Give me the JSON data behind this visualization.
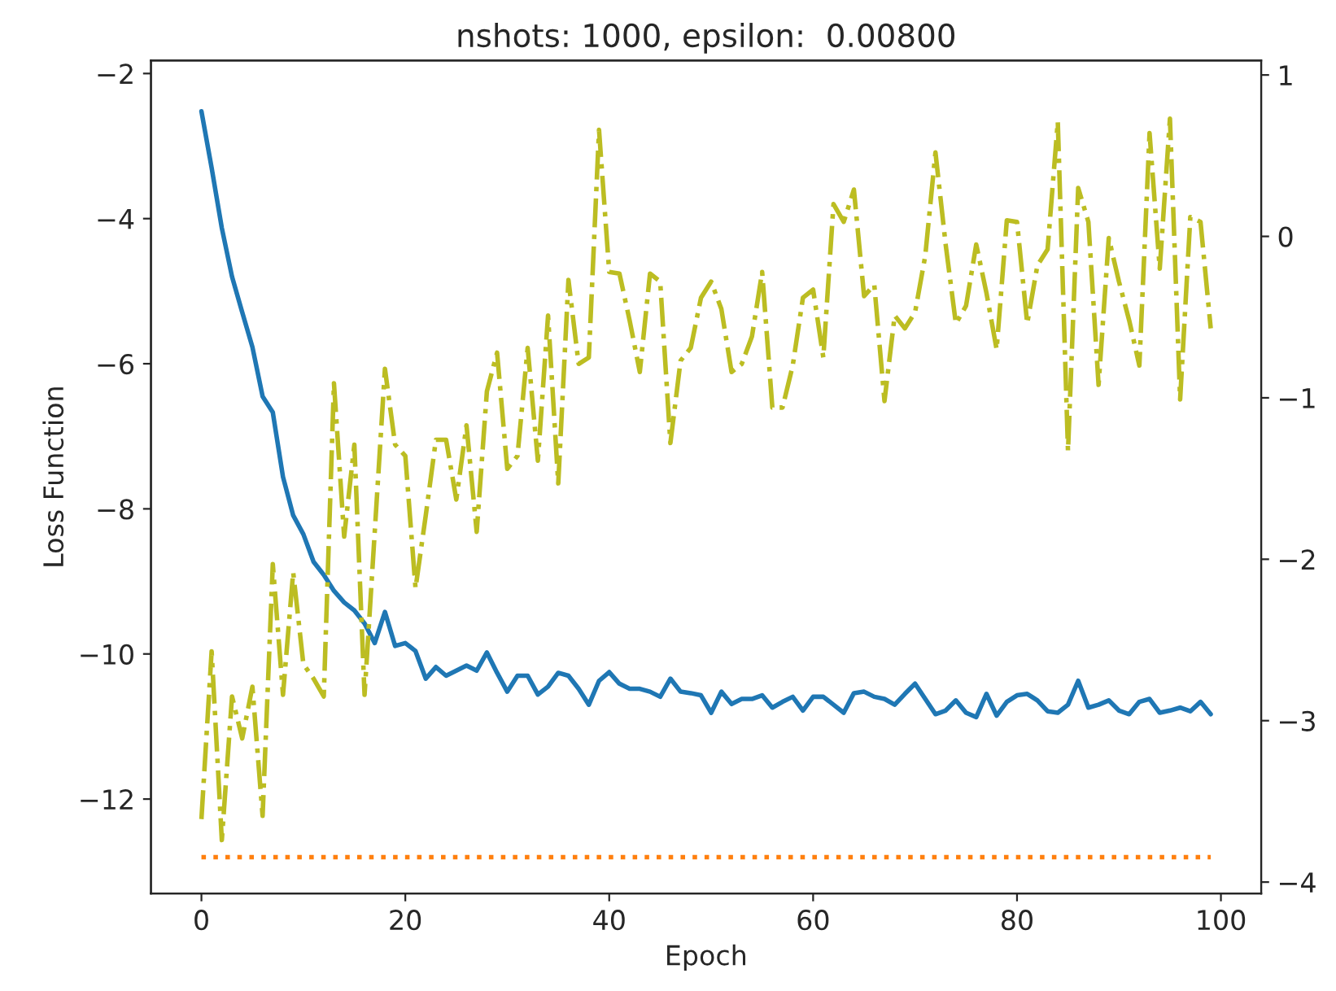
{
  "chart_data": {
    "type": "line",
    "title": "nshots: 1000, epsilon:  0.00800",
    "xlabel": "Epoch",
    "ylabel": "Loss Function",
    "x": [
      0,
      1,
      2,
      3,
      4,
      5,
      6,
      7,
      8,
      9,
      10,
      11,
      12,
      13,
      14,
      15,
      16,
      17,
      18,
      19,
      20,
      21,
      22,
      23,
      24,
      25,
      26,
      27,
      28,
      29,
      30,
      31,
      32,
      33,
      34,
      35,
      36,
      37,
      38,
      39,
      40,
      41,
      42,
      43,
      44,
      45,
      46,
      47,
      48,
      49,
      50,
      51,
      52,
      53,
      54,
      55,
      56,
      57,
      58,
      59,
      60,
      61,
      62,
      63,
      64,
      65,
      66,
      67,
      68,
      69,
      70,
      71,
      72,
      73,
      74,
      75,
      76,
      77,
      78,
      79,
      80,
      81,
      82,
      83,
      84,
      85,
      86,
      87,
      88,
      89,
      90,
      91,
      92,
      93,
      94,
      95,
      96,
      97,
      98,
      99
    ],
    "series": [
      {
        "color": "#1f77b4",
        "line_style": "solid",
        "values": [
          -2.52,
          -3.3,
          -4.13,
          -4.8,
          -5.29,
          -5.77,
          -6.45,
          -6.67,
          -7.56,
          -8.09,
          -8.35,
          -8.73,
          -8.91,
          -9.13,
          -9.29,
          -9.4,
          -9.58,
          -9.85,
          -9.42,
          -9.89,
          -9.85,
          -9.96,
          -10.34,
          -10.18,
          -10.3,
          -10.23,
          -10.16,
          -10.23,
          -9.98,
          -10.26,
          -10.52,
          -10.3,
          -10.3,
          -10.56,
          -10.45,
          -10.26,
          -10.3,
          -10.48,
          -10.7,
          -10.37,
          -10.25,
          -10.41,
          -10.48,
          -10.48,
          -10.52,
          -10.59,
          -10.34,
          -10.52,
          -10.54,
          -10.57,
          -10.81,
          -10.52,
          -10.69,
          -10.62,
          -10.62,
          -10.57,
          -10.74,
          -10.66,
          -10.59,
          -10.78,
          -10.59,
          -10.59,
          -10.7,
          -10.81,
          -10.54,
          -10.52,
          -10.59,
          -10.62,
          -10.7,
          -10.55,
          -10.41,
          -10.62,
          -10.83,
          -10.78,
          -10.64,
          -10.81,
          -10.87,
          -10.55,
          -10.85,
          -10.66,
          -10.57,
          -10.55,
          -10.64,
          -10.79,
          -10.81,
          -10.7,
          -10.37,
          -10.74,
          -10.7,
          -10.64,
          -10.78,
          -10.83,
          -10.66,
          -10.62,
          -10.81,
          -10.78,
          -10.74,
          -10.79,
          -10.66,
          -10.83
        ]
      },
      {
        "color": "#ff7f0e",
        "line_style": "dotted",
        "values": [
          -12.8,
          -12.8,
          -12.8,
          -12.8,
          -12.8,
          -12.8,
          -12.8,
          -12.8,
          -12.8,
          -12.8,
          -12.8,
          -12.8,
          -12.8,
          -12.8,
          -12.8,
          -12.8,
          -12.8,
          -12.8,
          -12.8,
          -12.8,
          -12.8,
          -12.8,
          -12.8,
          -12.8,
          -12.8,
          -12.8,
          -12.8,
          -12.8,
          -12.8,
          -12.8,
          -12.8,
          -12.8,
          -12.8,
          -12.8,
          -12.8,
          -12.8,
          -12.8,
          -12.8,
          -12.8,
          -12.8,
          -12.8,
          -12.8,
          -12.8,
          -12.8,
          -12.8,
          -12.8,
          -12.8,
          -12.8,
          -12.8,
          -12.8,
          -12.8,
          -12.8,
          -12.8,
          -12.8,
          -12.8,
          -12.8,
          -12.8,
          -12.8,
          -12.8,
          -12.8,
          -12.8,
          -12.8,
          -12.8,
          -12.8,
          -12.8,
          -12.8,
          -12.8,
          -12.8,
          -12.8,
          -12.8,
          -12.8,
          -12.8,
          -12.8,
          -12.8,
          -12.8,
          -12.8,
          -12.8,
          -12.8,
          -12.8,
          -12.8,
          -12.8,
          -12.8,
          -12.8,
          -12.8,
          -12.8,
          -12.8,
          -12.8,
          -12.8,
          -12.8,
          -12.8,
          -12.8,
          -12.8,
          -12.8,
          -12.8,
          -12.8,
          -12.8,
          -12.8,
          -12.8,
          -12.8,
          -12.8
        ]
      },
      {
        "color": "#bcbd22",
        "line_style": "dashdot",
        "axis": "y2",
        "values": [
          -3.61,
          -2.57,
          -3.74,
          -2.85,
          -3.11,
          -2.79,
          -3.59,
          -2.03,
          -2.84,
          -2.08,
          -2.65,
          -2.74,
          -2.85,
          -0.91,
          -1.86,
          -1.29,
          -2.84,
          -1.83,
          -0.82,
          -1.29,
          -1.36,
          -2.18,
          -1.73,
          -1.26,
          -1.26,
          -1.63,
          -1.17,
          -1.83,
          -0.96,
          -0.72,
          -1.44,
          -1.36,
          -0.69,
          -1.39,
          -0.49,
          -1.53,
          -0.27,
          -0.79,
          -0.75,
          0.66,
          -0.22,
          -0.23,
          -0.52,
          -0.84,
          -0.23,
          -0.28,
          -1.28,
          -0.77,
          -0.69,
          -0.38,
          -0.28,
          -0.45,
          -0.84,
          -0.79,
          -0.62,
          -0.22,
          -1.06,
          -1.06,
          -0.8,
          -0.38,
          -0.33,
          -0.75,
          0.2,
          0.09,
          0.29,
          -0.37,
          -0.3,
          -1.02,
          -0.49,
          -0.57,
          -0.47,
          -0.12,
          0.52,
          -0.05,
          -0.54,
          -0.43,
          -0.05,
          -0.35,
          -0.7,
          0.1,
          0.09,
          -0.54,
          -0.18,
          -0.08,
          0.71,
          -1.33,
          0.3,
          0.09,
          -0.92,
          -0.01,
          -0.28,
          -0.52,
          -0.8,
          0.64,
          -0.2,
          0.73,
          -1.01,
          0.12,
          0.09,
          -0.57
        ]
      }
    ],
    "xlim": [
      -4.95,
      103.95
    ],
    "xticks": [
      0,
      20,
      40,
      60,
      80,
      100
    ],
    "ylim": [
      -13.3,
      -1.82
    ],
    "yticks": [
      -12,
      -10,
      -8,
      -6,
      -4,
      -2
    ],
    "y2lim": [
      -4.07,
      1.09
    ],
    "y2ticks": [
      -4,
      -3,
      -2,
      -1,
      0,
      1
    ],
    "grid": false
  }
}
